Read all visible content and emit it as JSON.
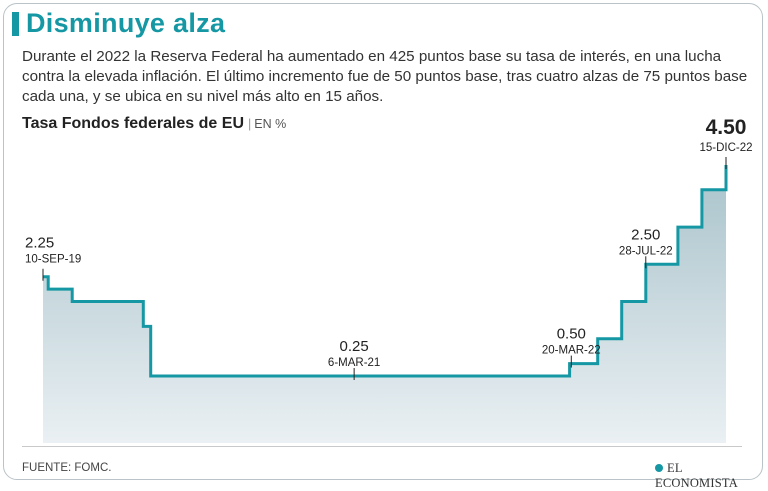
{
  "header": {
    "title": "Disminuye alza",
    "intro": "Durante el 2022 la Reserva Federal ha aumentado en 425 puntos base su tasa de interés, en una lucha contra la elevada inflación. El último incremento fue de 50 puntos base, tras cuatro alzas de 75 puntos base cada una, y se ubica en su nivel más alto en 15 años."
  },
  "chart_data": {
    "type": "area",
    "title": "Tasa Fondos federales de EU",
    "unit": "EN %",
    "ylim": [
      0,
      4.5
    ],
    "grid": false,
    "series": [
      {
        "name": "Tasa Fondos federales de EU",
        "step": true,
        "points": [
          {
            "date": "2019-09-10",
            "value": 2.25
          },
          {
            "date": "2019-09-19",
            "value": 2.0
          },
          {
            "date": "2019-10-31",
            "value": 1.75
          },
          {
            "date": "2020-03-03",
            "value": 1.25
          },
          {
            "date": "2020-03-16",
            "value": 0.25
          },
          {
            "date": "2022-03-17",
            "value": 0.5
          },
          {
            "date": "2022-05-05",
            "value": 1.0
          },
          {
            "date": "2022-06-16",
            "value": 1.75
          },
          {
            "date": "2022-07-28",
            "value": 2.5
          },
          {
            "date": "2022-09-22",
            "value": 3.25
          },
          {
            "date": "2022-11-03",
            "value": 4.0
          },
          {
            "date": "2022-12-15",
            "value": 4.5
          }
        ]
      }
    ],
    "annotations": [
      {
        "value_label": "2.25",
        "date_label": "10-SEP-19",
        "date": "2019-09-10",
        "value": 2.25,
        "align": "start",
        "emphasis": false
      },
      {
        "value_label": "0.25",
        "date_label": "6-MAR-21",
        "date": "2021-03-06",
        "value": 0.25,
        "align": "middle",
        "emphasis": false
      },
      {
        "value_label": "0.50",
        "date_label": "20-MAR-22",
        "date": "2022-03-20",
        "value": 0.5,
        "align": "middle",
        "emphasis": false
      },
      {
        "value_label": "2.50",
        "date_label": "28-JUL-22",
        "date": "2022-07-28",
        "value": 2.5,
        "align": "middle",
        "emphasis": false
      },
      {
        "value_label": "4.50",
        "date_label": "15-DIC-22",
        "date": "2022-12-15",
        "value": 4.5,
        "align": "middle",
        "emphasis": true
      }
    ],
    "colors": {
      "line": "#1597a4",
      "fill_top": "#a9c3cb",
      "fill_bottom": "#eaf0f3",
      "text": "#222222"
    }
  },
  "footer": {
    "source": "FUENTE: FOMC.",
    "brand": "EL ECONOMISTA"
  }
}
